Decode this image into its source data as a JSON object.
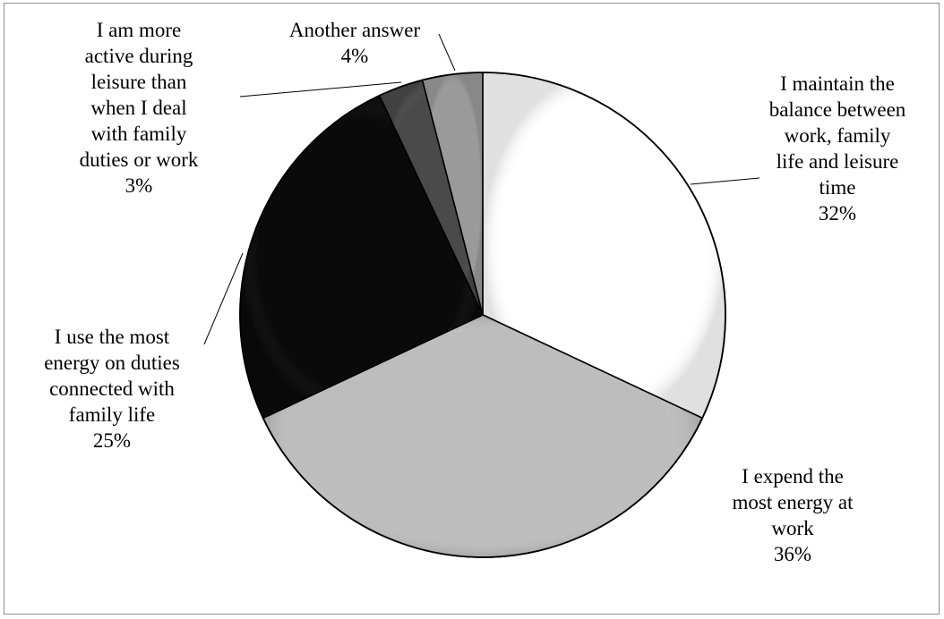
{
  "chart_data": {
    "type": "pie",
    "title": "",
    "start_angle_deg": 0,
    "direction": "clockwise",
    "slices": [
      {
        "label": "I maintain the balance between work, family life and leisure time",
        "value": 32,
        "value_label": "32%",
        "color": "#ffffff",
        "label_lines": [
          "I maintain the",
          "balance between",
          "work, family",
          "life and leisure",
          "time",
          "32%"
        ]
      },
      {
        "label": "I expend the most energy at work",
        "value": 36,
        "value_label": "36%",
        "color": "#bdbdbd",
        "label_lines": [
          "I expend the",
          "most energy at",
          "work",
          "36%"
        ]
      },
      {
        "label": "I use the most energy on duties connected with family life",
        "value": 25,
        "value_label": "25%",
        "color": "#0a0a0a",
        "label_lines": [
          "I use the most",
          "energy on duties",
          "connected with",
          "family life",
          "25%"
        ]
      },
      {
        "label": "I am more active during leisure than when I deal with family duties or work",
        "value": 3,
        "value_label": "3%",
        "color": "#4a4a4a",
        "label_lines": [
          "I am more",
          "active during",
          "leisure than",
          "when I deal",
          "with family",
          "duties or work",
          "3%"
        ]
      },
      {
        "label": "Another answer",
        "value": 4,
        "value_label": "4%",
        "color": "#9a9a9a",
        "label_lines": [
          "Another answer",
          "4%"
        ]
      }
    ]
  }
}
